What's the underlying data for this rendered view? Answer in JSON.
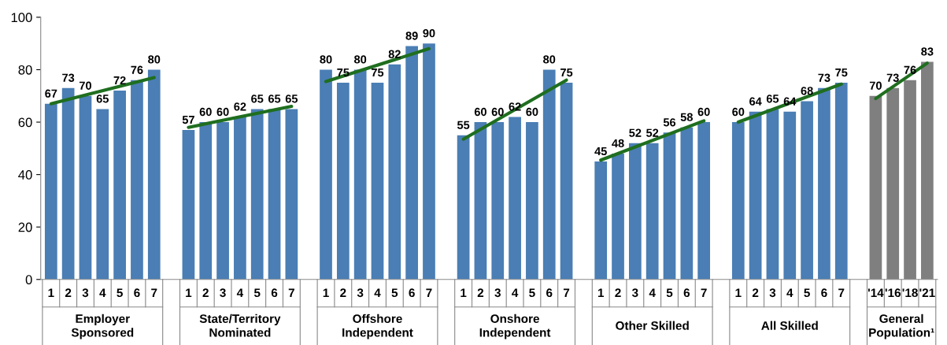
{
  "chart_data": {
    "type": "bar",
    "categories": [
      "1",
      "2",
      "3",
      "4",
      "5",
      "6",
      "7",
      null,
      "1",
      "2",
      "3",
      "4",
      "5",
      "6",
      "7",
      null,
      "1",
      "2",
      "3",
      "4",
      "5",
      "6",
      "7",
      null,
      "1",
      "2",
      "3",
      "4",
      "5",
      "6",
      "7",
      null,
      "1",
      "2",
      "3",
      "4",
      "5",
      "6",
      "7",
      null,
      "1",
      "2",
      "3",
      "4",
      "5",
      "6",
      "7",
      null,
      "'14",
      "'16",
      "'18",
      "'21"
    ],
    "series": [
      {
        "values": [
          67,
          73,
          70,
          65,
          72,
          76,
          80,
          null,
          57,
          60,
          60,
          62,
          65,
          65,
          65,
          null,
          80,
          75,
          80,
          75,
          82,
          89,
          90,
          null,
          55,
          60,
          60,
          62,
          60,
          80,
          75,
          null,
          45,
          48,
          52,
          52,
          56,
          58,
          60,
          null,
          60,
          64,
          65,
          64,
          68,
          73,
          75,
          null,
          70,
          73,
          76,
          83
        ],
        "value_labels": [
          "67",
          "73",
          "70",
          "65",
          "72",
          "76",
          "80",
          null,
          "57",
          "60",
          "60",
          "62",
          "65",
          "65",
          "65",
          null,
          "80",
          "75",
          "80",
          "75",
          "82",
          "89",
          "90",
          null,
          "55",
          "60",
          "60",
          "62",
          "60",
          "80",
          "75",
          null,
          "45",
          "48",
          "52",
          "52",
          "56",
          "58",
          "60",
          null,
          "60",
          "64",
          "65",
          "64",
          "68",
          "73",
          "75",
          null,
          "70",
          "73",
          "76",
          "83"
        ],
        "colors": [
          "#4a7eb4",
          "#4a7eb4",
          "#4a7eb4",
          "#4a7eb4",
          "#4a7eb4",
          "#4a7eb4",
          "#4a7eb4",
          null,
          "#4a7eb4",
          "#4a7eb4",
          "#4a7eb4",
          "#4a7eb4",
          "#4a7eb4",
          "#4a7eb4",
          "#4a7eb4",
          null,
          "#4a7eb4",
          "#4a7eb4",
          "#4a7eb4",
          "#4a7eb4",
          "#4a7eb4",
          "#4a7eb4",
          "#4a7eb4",
          null,
          "#4a7eb4",
          "#4a7eb4",
          "#4a7eb4",
          "#4a7eb4",
          "#4a7eb4",
          "#4a7eb4",
          "#4a7eb4",
          null,
          "#4a7eb4",
          "#4a7eb4",
          "#4a7eb4",
          "#4a7eb4",
          "#4a7eb4",
          "#4a7eb4",
          "#4a7eb4",
          null,
          "#4a7eb4",
          "#4a7eb4",
          "#4a7eb4",
          "#4a7eb4",
          "#4a7eb4",
          "#4a7eb4",
          "#4a7eb4",
          null,
          "#7f7f7f",
          "#7f7f7f",
          "#7f7f7f",
          "#7f7f7f"
        ]
      },
      {
        "type": "line",
        "color": "#1f6e1f",
        "values": [
          67,
          null,
          null,
          null,
          null,
          null,
          77,
          null,
          null,
          null,
          null,
          null,
          null,
          null,
          null,
          null,
          null,
          null,
          null,
          null,
          null,
          null,
          null,
          null,
          null,
          null,
          null,
          null,
          null,
          null,
          null,
          null,
          null,
          null,
          null,
          null,
          null,
          null,
          null,
          null,
          null,
          null,
          null,
          null,
          null,
          null,
          null,
          null,
          null,
          null,
          null,
          null
        ]
      },
      {
        "type": "line",
        "color": "#1f6e1f",
        "values": [
          null,
          null,
          null,
          null,
          null,
          null,
          null,
          null,
          58,
          null,
          null,
          null,
          null,
          null,
          66,
          null,
          null,
          null,
          null,
          null,
          null,
          null,
          null,
          null,
          null,
          null,
          null,
          null,
          null,
          null,
          null,
          null,
          null,
          null,
          null,
          null,
          null,
          null,
          null,
          null,
          null,
          null,
          null,
          null,
          null,
          null,
          null,
          null,
          null,
          null,
          null,
          null
        ]
      },
      {
        "type": "line",
        "color": "#1f6e1f",
        "values": [
          null,
          null,
          null,
          null,
          null,
          null,
          null,
          null,
          null,
          null,
          null,
          null,
          null,
          null,
          null,
          null,
          75.5,
          null,
          null,
          null,
          null,
          null,
          88,
          null,
          null,
          null,
          null,
          null,
          null,
          null,
          null,
          null,
          null,
          null,
          null,
          null,
          null,
          null,
          null,
          null,
          null,
          null,
          null,
          null,
          null,
          null,
          null,
          null,
          null,
          null,
          null,
          null
        ]
      },
      {
        "type": "line",
        "color": "#1f6e1f",
        "values": [
          null,
          null,
          null,
          null,
          null,
          null,
          null,
          null,
          null,
          null,
          null,
          null,
          null,
          null,
          null,
          null,
          null,
          null,
          null,
          null,
          null,
          null,
          null,
          null,
          53.5,
          null,
          null,
          null,
          null,
          null,
          76,
          null,
          null,
          null,
          null,
          null,
          null,
          null,
          null,
          null,
          null,
          null,
          null,
          null,
          null,
          null,
          null,
          null,
          null,
          null,
          null,
          null
        ]
      },
      {
        "type": "line",
        "color": "#1f6e1f",
        "values": [
          null,
          null,
          null,
          null,
          null,
          null,
          null,
          null,
          null,
          null,
          null,
          null,
          null,
          null,
          null,
          null,
          null,
          null,
          null,
          null,
          null,
          null,
          null,
          null,
          null,
          null,
          null,
          null,
          null,
          null,
          null,
          null,
          45.5,
          null,
          null,
          null,
          null,
          null,
          60.5,
          null,
          null,
          null,
          null,
          null,
          null,
          null,
          null,
          null,
          null,
          null,
          null,
          null
        ]
      },
      {
        "type": "line",
        "color": "#1f6e1f",
        "values": [
          null,
          null,
          null,
          null,
          null,
          null,
          null,
          null,
          null,
          null,
          null,
          null,
          null,
          null,
          null,
          null,
          null,
          null,
          null,
          null,
          null,
          null,
          null,
          null,
          null,
          null,
          null,
          null,
          null,
          null,
          null,
          null,
          null,
          null,
          null,
          null,
          null,
          null,
          null,
          null,
          60,
          null,
          null,
          null,
          null,
          null,
          74.5,
          null,
          null,
          null,
          null,
          null
        ]
      },
      {
        "type": "line",
        "color": "#1f6e1f",
        "values": [
          null,
          null,
          null,
          null,
          null,
          null,
          null,
          null,
          null,
          null,
          null,
          null,
          null,
          null,
          null,
          null,
          null,
          null,
          null,
          null,
          null,
          null,
          null,
          null,
          null,
          null,
          null,
          null,
          null,
          null,
          null,
          null,
          null,
          null,
          null,
          null,
          null,
          null,
          null,
          null,
          null,
          null,
          null,
          null,
          null,
          null,
          null,
          null,
          69,
          null,
          null,
          82.5
        ]
      }
    ],
    "annotations": [
      "Employer\nSponsored",
      "State/Territory\nNominated",
      "Offshore\nIndependent",
      "Onshore\nIndependent",
      "Other Skilled",
      "All Skilled",
      "General\nPopulation¹"
    ],
    "ylim": [
      0,
      100
    ],
    "yticks": [
      0,
      20,
      40,
      60,
      80,
      100
    ],
    "grid": false
  }
}
